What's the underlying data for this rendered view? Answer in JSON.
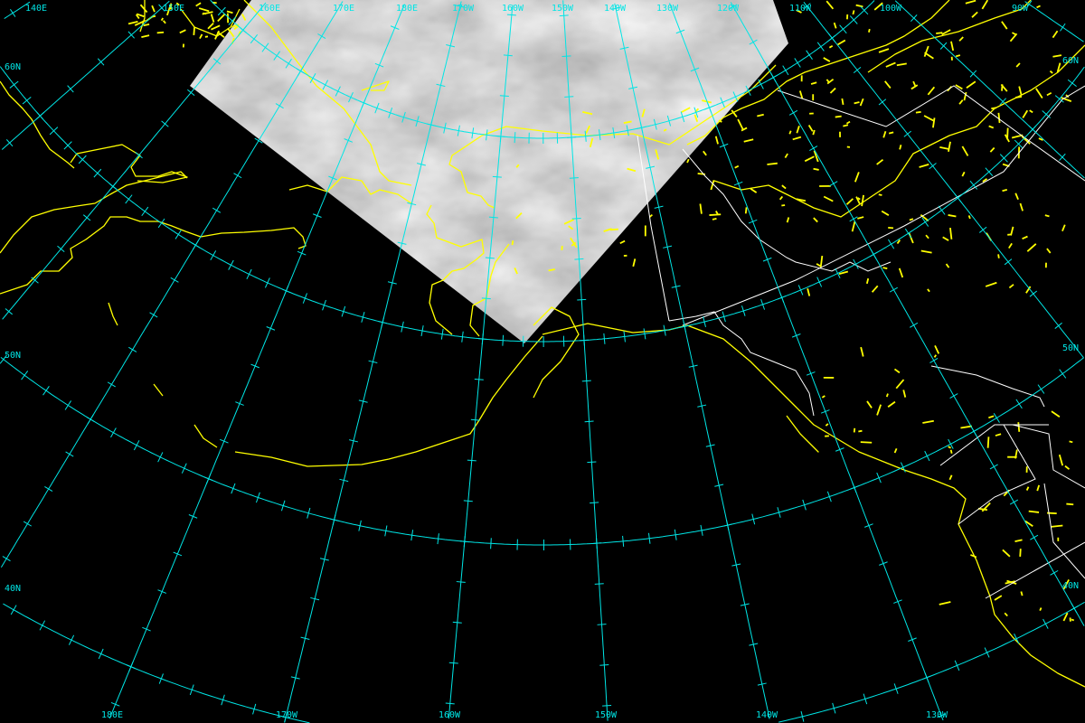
{
  "map": {
    "colors": {
      "background": "#000000",
      "graticule": "#00e5e5",
      "coastline": "#ffff00",
      "political_borders": "#ffffff",
      "satellite_imagery": "#8a8a8a"
    },
    "top_longitude_labels": [
      "140E",
      "150E",
      "160E",
      "170E",
      "180E",
      "170W",
      "160W",
      "150W",
      "140W",
      "130W",
      "120W",
      "110W",
      "100W",
      "90W"
    ],
    "bottom_longitude_labels": [
      "180E",
      "170W",
      "160W",
      "150W",
      "140W",
      "130W"
    ],
    "left_latitude_labels": [
      "60N",
      "50N",
      "40N"
    ],
    "right_latitude_labels": [
      "60N",
      "50N",
      "40N"
    ]
  }
}
